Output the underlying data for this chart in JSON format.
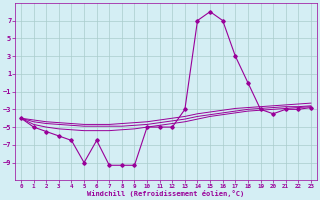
{
  "x": [
    0,
    1,
    2,
    3,
    4,
    5,
    6,
    7,
    8,
    9,
    10,
    11,
    12,
    13,
    14,
    15,
    16,
    17,
    18,
    19,
    20,
    21,
    22,
    23
  ],
  "line1": [
    -4,
    -5,
    -5.5,
    -6,
    -6.5,
    -9,
    -6.5,
    -9.3,
    -9.3,
    -9.3,
    -5,
    -5,
    -5,
    -3,
    7,
    8,
    7,
    3,
    0,
    -3,
    -3.5,
    -3,
    -3,
    -2.8
  ],
  "line2": [
    -4.0,
    -4.4,
    -4.6,
    -4.7,
    -4.8,
    -4.9,
    -4.9,
    -4.9,
    -4.9,
    -4.8,
    -4.7,
    -4.5,
    -4.3,
    -4.1,
    -3.8,
    -3.6,
    -3.4,
    -3.2,
    -3.0,
    -2.9,
    -2.8,
    -2.7,
    -2.7,
    -2.6
  ],
  "line3": [
    -4.0,
    -4.7,
    -5.0,
    -5.2,
    -5.3,
    -5.4,
    -5.4,
    -5.4,
    -5.3,
    -5.2,
    -5.0,
    -4.8,
    -4.6,
    -4.4,
    -4.1,
    -3.8,
    -3.6,
    -3.4,
    -3.2,
    -3.1,
    -3.0,
    -2.9,
    -2.8,
    -2.7
  ],
  "line4": [
    -4.0,
    -4.2,
    -4.4,
    -4.5,
    -4.6,
    -4.7,
    -4.7,
    -4.7,
    -4.6,
    -4.5,
    -4.4,
    -4.2,
    -4.0,
    -3.8,
    -3.5,
    -3.3,
    -3.1,
    -2.9,
    -2.8,
    -2.7,
    -2.6,
    -2.5,
    -2.4,
    -2.3
  ],
  "bg_color": "#d4eef4",
  "line_color": "#990099",
  "grid_color": "#aacccc",
  "xlabel": "Windchill (Refroidissement éolien,°C)",
  "ylim": [
    -11,
    9
  ],
  "xlim": [
    -0.5,
    23.5
  ],
  "yticks": [
    -9,
    -7,
    -5,
    -3,
    -1,
    1,
    3,
    5,
    7
  ],
  "xticks": [
    0,
    1,
    2,
    3,
    4,
    5,
    6,
    7,
    8,
    9,
    10,
    11,
    12,
    13,
    14,
    15,
    16,
    17,
    18,
    19,
    20,
    21,
    22,
    23
  ]
}
